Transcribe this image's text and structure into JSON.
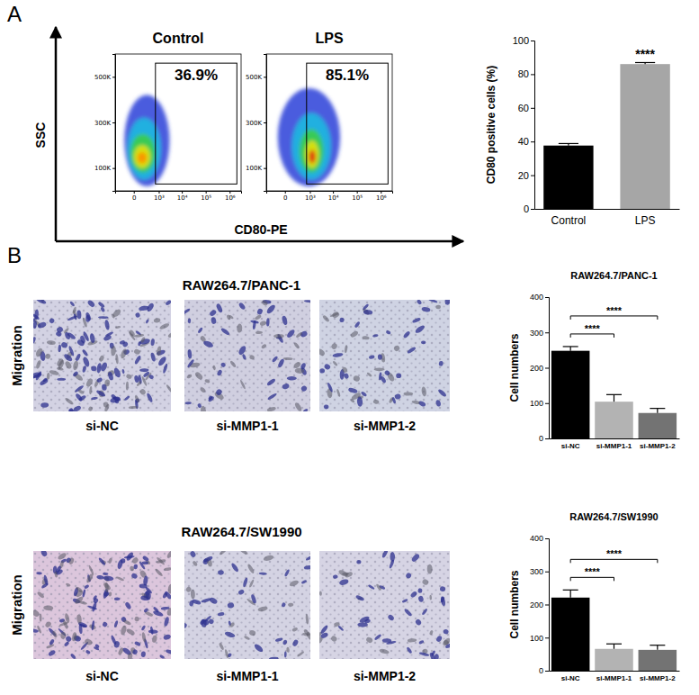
{
  "panel_labels": [
    "A",
    "B"
  ],
  "flow_axis_titles": {
    "x": "CD80-PE",
    "y": "SSC"
  },
  "image_panels": [
    {
      "title": "RAW264.7/PANC-1",
      "row_label": "Migration",
      "labels": [
        "si-NC",
        "si-MMP1-1",
        "si-MMP1-2"
      ]
    },
    {
      "title": "RAW264.7/SW1990",
      "row_label": "Migration",
      "labels": [
        "si-NC",
        "si-MMP1-1",
        "si-MMP1-2"
      ]
    }
  ],
  "chart_data": [
    {
      "type": "flow_cytometry",
      "title": "Control",
      "log": "x",
      "xlim": [
        -500,
        3000000
      ],
      "xticks": [
        0,
        {
          "value": 1000,
          "label": "10³"
        },
        {
          "value": 10000,
          "label": "10⁴"
        },
        {
          "value": 100000,
          "label": "10⁵"
        },
        {
          "value": 1000000,
          "label": "10⁶"
        }
      ],
      "ylim": [
        0,
        600000
      ],
      "yticks": [
        {
          "value": 100000,
          "label": "100K"
        },
        {
          "value": 300000,
          "label": "300K"
        },
        {
          "value": 500000,
          "label": "500K"
        }
      ],
      "gate_x": [
        700,
        2000000
      ],
      "gate_y": [
        30000,
        560000
      ],
      "gate_label": "36.9%",
      "density_contours": [
        {
          "x": [
            -150,
            3000
          ],
          "y": [
            20000,
            420000
          ],
          "color": "#2a3fd8"
        },
        {
          "x": [
            -80,
            1200
          ],
          "y": [
            50000,
            320000
          ],
          "color": "#19bfe0"
        },
        {
          "x": [
            -40,
            700
          ],
          "y": [
            80000,
            250000
          ],
          "color": "#3fcf3f"
        },
        {
          "x": [
            0,
            400
          ],
          "y": [
            100000,
            200000
          ],
          "color": "#f0e400"
        },
        {
          "x": [
            40,
            250
          ],
          "y": [
            120000,
            170000
          ],
          "color": "#ff8a00"
        }
      ]
    },
    {
      "type": "flow_cytometry",
      "title": "LPS",
      "log": "x",
      "xlim": [
        -500,
        3000000
      ],
      "xticks": [
        0,
        {
          "value": 1000,
          "label": "10³"
        },
        {
          "value": 10000,
          "label": "10⁴"
        },
        {
          "value": 100000,
          "label": "10⁵"
        },
        {
          "value": 1000000,
          "label": "10⁶"
        }
      ],
      "ylim": [
        0,
        600000
      ],
      "yticks": [
        {
          "value": 100000,
          "label": "100K"
        },
        {
          "value": 300000,
          "label": "300K"
        },
        {
          "value": 500000,
          "label": "500K"
        }
      ],
      "gate_x": [
        700,
        2000000
      ],
      "gate_y": [
        30000,
        560000
      ],
      "gate_label": "85.1%",
      "density_contours": [
        {
          "x": [
            -100,
            20000
          ],
          "y": [
            20000,
            450000
          ],
          "color": "#2a3fd8"
        },
        {
          "x": [
            100,
            8000
          ],
          "y": [
            50000,
            340000
          ],
          "color": "#19bfe0"
        },
        {
          "x": [
            300,
            4000
          ],
          "y": [
            80000,
            270000
          ],
          "color": "#3fcf3f"
        },
        {
          "x": [
            600,
            2500
          ],
          "y": [
            100000,
            220000
          ],
          "color": "#f0e400"
        },
        {
          "x": [
            900,
            1800
          ],
          "y": [
            120000,
            180000
          ],
          "color": "#e01a10"
        }
      ]
    },
    {
      "type": "bar",
      "categories": [
        "Control",
        "LPS"
      ],
      "values": [
        37.6,
        86.0
      ],
      "errors": [
        1.2,
        0.9
      ],
      "colors": [
        "#000000",
        "#a6a6a6"
      ],
      "y_label": "CD80 positive cells (%)",
      "ylim": [
        0,
        100
      ],
      "yticks": [
        0,
        20,
        40,
        60,
        80,
        100
      ],
      "significance": [
        null,
        "****"
      ]
    },
    {
      "type": "bar",
      "title": "RAW264.7/PANC-1",
      "categories": [
        "si-NC",
        "si-MMP1-1",
        "si-MMP1-2"
      ],
      "values": [
        248,
        104,
        72
      ],
      "errors": [
        12,
        20,
        13
      ],
      "colors": [
        "#000000",
        "#b3b3b3",
        "#737373"
      ],
      "y_label": "Cell numbers",
      "ylim": [
        0,
        400
      ],
      "yticks": [
        0,
        100,
        200,
        300,
        400
      ],
      "comparisons": [
        {
          "groups": [
            "si-NC",
            "si-MMP1-1"
          ],
          "label": "****"
        },
        {
          "groups": [
            "si-NC",
            "si-MMP1-2"
          ],
          "label": "****"
        }
      ]
    },
    {
      "type": "bar",
      "title": "RAW264.7/SW1990",
      "categories": [
        "si-NC",
        "si-MMP1-1",
        "si-MMP1-2"
      ],
      "values": [
        221,
        66,
        63
      ],
      "errors": [
        23,
        15,
        14
      ],
      "colors": [
        "#000000",
        "#b3b3b3",
        "#737373"
      ],
      "y_label": "Cell numbers",
      "ylim": [
        0,
        400
      ],
      "yticks": [
        0,
        100,
        200,
        300,
        400
      ],
      "comparisons": [
        {
          "groups": [
            "si-NC",
            "si-MMP1-1"
          ],
          "label": "****"
        },
        {
          "groups": [
            "si-NC",
            "si-MMP1-2"
          ],
          "label": "****"
        }
      ]
    }
  ]
}
